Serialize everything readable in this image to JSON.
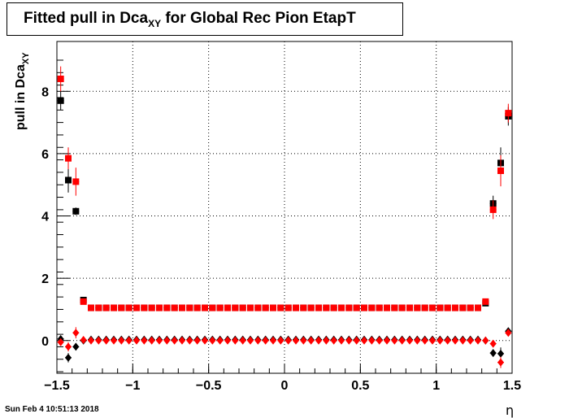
{
  "title": {
    "main": "Fitted pull in Dca",
    "sub": "XY",
    "rest": " for Global Rec Pion EtapT"
  },
  "ylabel": {
    "main": "pull in Dca",
    "sub": "XY"
  },
  "xlabel": "η",
  "footer": "Sun Feb  4 10:51:13 2018",
  "chart_data": {
    "type": "scatter",
    "xlim": [
      -1.5,
      1.5
    ],
    "ylim": [
      -1.05,
      9.6
    ],
    "grid": true,
    "x_ticks": [
      {
        "v": -1.5,
        "label": "−1.5"
      },
      {
        "v": -1,
        "label": "−1"
      },
      {
        "v": -0.5,
        "label": "−0.5"
      },
      {
        "v": 0,
        "label": "0"
      },
      {
        "v": 0.5,
        "label": "0.5"
      },
      {
        "v": 1,
        "label": "1"
      },
      {
        "v": 1.5,
        "label": "1.5"
      }
    ],
    "y_ticks": [
      {
        "v": 0,
        "label": "0"
      },
      {
        "v": 2,
        "label": "2"
      },
      {
        "v": 4,
        "label": "4"
      },
      {
        "v": 6,
        "label": "6"
      },
      {
        "v": 8,
        "label": "8"
      }
    ],
    "series": [
      {
        "marker": "square",
        "color": "#000000",
        "points": [
          [
            -1.475,
            7.7,
            0.3
          ],
          [
            -1.425,
            5.15,
            0.4
          ],
          [
            -1.375,
            4.15,
            0.12
          ],
          [
            -1.325,
            1.3,
            0.05
          ]
        ],
        "flat_y": 1.05,
        "flat_x_start": -1.275,
        "flat_x_end": 1.275,
        "flat_step": 0.05,
        "tail": [
          [
            1.325,
            1.2,
            0.05
          ],
          [
            1.375,
            4.4,
            0.25
          ],
          [
            1.425,
            5.7,
            0.5
          ],
          [
            1.475,
            7.2,
            0.3
          ]
        ]
      },
      {
        "marker": "square",
        "color": "#ff0000",
        "points": [
          [
            -1.475,
            8.4,
            0.4
          ],
          [
            -1.425,
            5.85,
            0.35
          ],
          [
            -1.375,
            5.1,
            0.45
          ],
          [
            -1.325,
            1.25,
            0.06
          ]
        ],
        "flat_y": 1.05,
        "flat_x_start": -1.275,
        "flat_x_end": 1.275,
        "flat_step": 0.05,
        "tail": [
          [
            1.325,
            1.25,
            0.06
          ],
          [
            1.375,
            4.2,
            0.3
          ],
          [
            1.425,
            5.45,
            0.5
          ],
          [
            1.475,
            7.3,
            0.3
          ]
        ]
      },
      {
        "marker": "diamond",
        "color": "#000000",
        "points": [
          [
            -1.475,
            0.05,
            0.08
          ],
          [
            -1.425,
            -0.55,
            0.15
          ],
          [
            -1.375,
            -0.2,
            0.1
          ],
          [
            -1.325,
            0.0,
            0.03
          ]
        ],
        "flat_y": 0.03,
        "flat_x_start": -1.275,
        "flat_x_end": 1.275,
        "flat_step": 0.05,
        "tail": [
          [
            1.325,
            0.0,
            0.03
          ],
          [
            1.375,
            -0.4,
            0.12
          ],
          [
            1.425,
            -0.42,
            0.2
          ],
          [
            1.475,
            0.3,
            0.1
          ]
        ]
      },
      {
        "marker": "diamond",
        "color": "#ff0000",
        "points": [
          [
            -1.475,
            -0.05,
            0.1
          ],
          [
            -1.425,
            -0.2,
            0.15
          ],
          [
            -1.375,
            0.25,
            0.18
          ],
          [
            -1.325,
            0.02,
            0.03
          ]
        ],
        "flat_y": 0.0,
        "flat_x_start": -1.275,
        "flat_x_end": 1.275,
        "flat_step": 0.05,
        "tail": [
          [
            1.325,
            0.0,
            0.03
          ],
          [
            1.375,
            -0.1,
            0.12
          ],
          [
            1.425,
            -0.7,
            0.18
          ],
          [
            1.475,
            0.25,
            0.1
          ]
        ]
      }
    ]
  }
}
